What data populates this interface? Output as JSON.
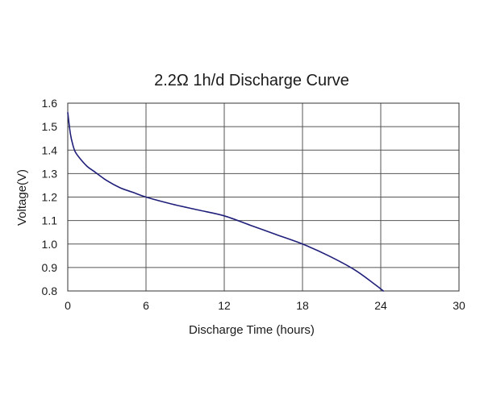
{
  "chart_data": {
    "type": "line",
    "title": "2.2Ω 1h/d Discharge Curve",
    "xlabel": "Discharge Time (hours)",
    "ylabel": "Voltage(V)",
    "xlim": [
      0,
      30
    ],
    "ylim": [
      0.8,
      1.6
    ],
    "xticks": [
      "0",
      "6",
      "12",
      "18",
      "24",
      "30"
    ],
    "yticks": [
      "1.6",
      "1.5",
      "1.4",
      "1.3",
      "1.2",
      "1.1",
      "1.0",
      "0.9",
      "0.8"
    ],
    "grid": true,
    "series": [
      {
        "color": "#1f1f7a",
        "x": [
          0,
          0.2,
          0.4,
          0.6,
          1.0,
          1.5,
          2.0,
          3.0,
          4.0,
          5.0,
          6.0,
          8.0,
          10.0,
          12.0,
          14.0,
          16.0,
          18.0,
          20.0,
          22.0,
          23.5,
          24.2
        ],
        "y": [
          1.56,
          1.47,
          1.42,
          1.39,
          1.36,
          1.33,
          1.31,
          1.27,
          1.24,
          1.22,
          1.2,
          1.17,
          1.145,
          1.12,
          1.08,
          1.04,
          1.0,
          0.95,
          0.89,
          0.83,
          0.8
        ]
      }
    ]
  }
}
